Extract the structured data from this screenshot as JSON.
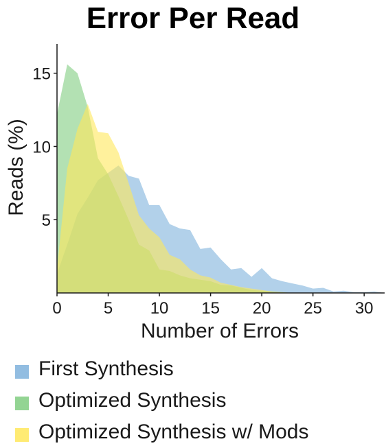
{
  "chart_data": {
    "type": "area",
    "title": "Error Per Read",
    "xlabel": "Number of Errors",
    "ylabel": "Reads (%)",
    "xlim": [
      0,
      32
    ],
    "ylim": [
      0,
      17
    ],
    "xticks": [
      0,
      5,
      10,
      15,
      20,
      25,
      30
    ],
    "yticks": [
      5,
      10,
      15
    ],
    "grid": false,
    "legend_position": "bottom-left",
    "series": [
      {
        "name": "First Synthesis",
        "color": "#7fb2dc",
        "points": [
          [
            0,
            1.3
          ],
          [
            1,
            3.3
          ],
          [
            2,
            5.4
          ],
          [
            3,
            6.5
          ],
          [
            4,
            7.7
          ],
          [
            5,
            8.2
          ],
          [
            6,
            8.7
          ],
          [
            7,
            8.0
          ],
          [
            8,
            7.8
          ],
          [
            9,
            6.0
          ],
          [
            10,
            6.0
          ],
          [
            11,
            4.7
          ],
          [
            12,
            4.4
          ],
          [
            13,
            4.3
          ],
          [
            14,
            3.0
          ],
          [
            15,
            3.1
          ],
          [
            16,
            2.3
          ],
          [
            17,
            1.6
          ],
          [
            18,
            1.7
          ],
          [
            19,
            1.1
          ],
          [
            20,
            1.7
          ],
          [
            21,
            1.0
          ],
          [
            22,
            0.8
          ],
          [
            23,
            0.65
          ],
          [
            24,
            0.5
          ],
          [
            25,
            0.3
          ],
          [
            26,
            0.35
          ],
          [
            27,
            0.1
          ],
          [
            28,
            0.15
          ],
          [
            29,
            0.05
          ],
          [
            30,
            0.05
          ],
          [
            31,
            0.1
          ],
          [
            32,
            0.0
          ]
        ]
      },
      {
        "name": "Optimized Synthesis",
        "color": "#80cd80",
        "points": [
          [
            0,
            12.2
          ],
          [
            1,
            15.6
          ],
          [
            2,
            15.0
          ],
          [
            3,
            12.7
          ],
          [
            4,
            9.2
          ],
          [
            5,
            8.1
          ],
          [
            6,
            6.6
          ],
          [
            7,
            5.0
          ],
          [
            8,
            3.3
          ],
          [
            9,
            2.9
          ],
          [
            10,
            1.6
          ],
          [
            11,
            1.5
          ],
          [
            12,
            1.2
          ],
          [
            13,
            1.0
          ],
          [
            14,
            0.9
          ],
          [
            15,
            0.8
          ],
          [
            16,
            0.55
          ],
          [
            17,
            0.5
          ],
          [
            18,
            0.35
          ],
          [
            19,
            0.2
          ],
          [
            20,
            0.15
          ],
          [
            21,
            0.1
          ],
          [
            22,
            0.05
          ],
          [
            23,
            0.0
          ]
        ]
      },
      {
        "name": "Optimized Synthesis w/ Mods",
        "color": "#ffe75a",
        "points": [
          [
            0,
            1.6
          ],
          [
            1,
            8.5
          ],
          [
            2,
            11.2
          ],
          [
            3,
            12.9
          ],
          [
            4,
            11.0
          ],
          [
            5,
            10.9
          ],
          [
            6,
            9.6
          ],
          [
            7,
            7.5
          ],
          [
            8,
            5.3
          ],
          [
            9,
            4.4
          ],
          [
            10,
            3.8
          ],
          [
            11,
            2.6
          ],
          [
            12,
            2.3
          ],
          [
            13,
            1.6
          ],
          [
            14,
            1.2
          ],
          [
            15,
            1.05
          ],
          [
            16,
            0.7
          ],
          [
            17,
            0.55
          ],
          [
            18,
            0.4
          ],
          [
            19,
            0.3
          ],
          [
            20,
            0.2
          ],
          [
            21,
            0.1
          ],
          [
            22,
            0.05
          ],
          [
            23,
            0.0
          ]
        ]
      }
    ]
  }
}
